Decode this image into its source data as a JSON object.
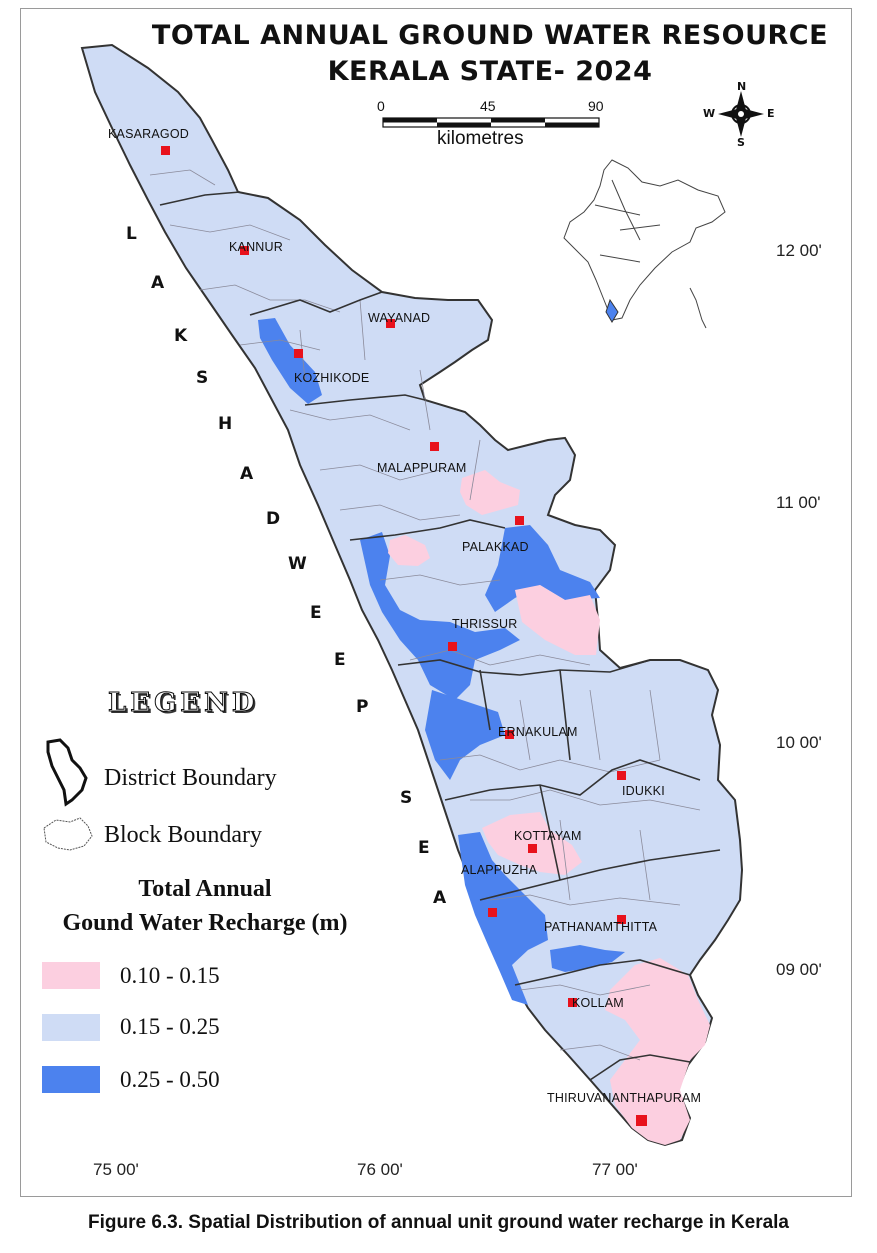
{
  "title_line1": "TOTAL ANNUAL GROUND WATER RESOURCE",
  "title_line2": "KERALA STATE- 2024",
  "scale_bar": {
    "ticks": [
      "0",
      "45",
      "90"
    ],
    "unit": "kilometres"
  },
  "compass": {
    "n": "N",
    "s": "S",
    "e": "E",
    "w": "W"
  },
  "latitudes": [
    "12 00'",
    "11 00'",
    "10 00'",
    "09 00'"
  ],
  "longitudes": [
    "75 00'",
    "76 00'",
    "77 00'"
  ],
  "districts": [
    "KASARAGOD",
    "KANNUR",
    "WAYANAD",
    "KOZHIKODE",
    "MALAPPURAM",
    "PALAKKAD",
    "THRISSUR",
    "ERNAKULAM",
    "IDUKKI",
    "KOTTAYAM",
    "ALAPPUZHA",
    "PATHANAMTHITTA",
    "KOLLAM",
    "THIRUVANANTHAPURAM"
  ],
  "sea_letters": [
    "L",
    "A",
    "K",
    "S",
    "H",
    "A",
    "D",
    "W",
    "E",
    "E",
    "P",
    "S",
    "E",
    "A"
  ],
  "legend": {
    "title": "LEGEND",
    "district_boundary": "District Boundary",
    "block_boundary": "Block Boundary",
    "recharge_heading_line1": "Total Annual",
    "recharge_heading_line2": "Gound Water Recharge (m)",
    "classes": [
      {
        "label": "0.10 -  0.15",
        "color": "#fccfe0"
      },
      {
        "label": "0.15 -  0.25",
        "color": "#cfdcf5"
      },
      {
        "label": "0.25 -  0.50",
        "color": "#4c82ee"
      }
    ]
  },
  "colors": {
    "border": "#555555",
    "headquarters": "#e8121c",
    "india_outline": "#444444"
  },
  "caption": "Figure 6.3. Spatial Distribution of annual unit ground water recharge in Kerala"
}
